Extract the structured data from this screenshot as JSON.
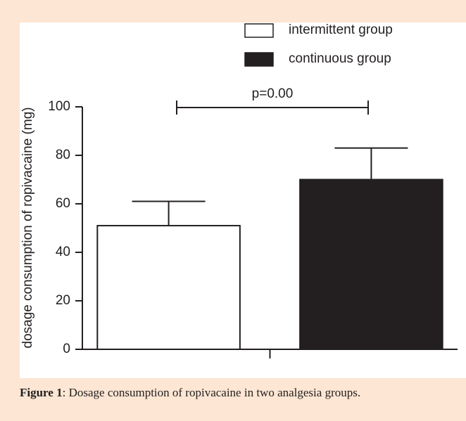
{
  "chart_data": {
    "type": "bar",
    "categories": [
      null
    ],
    "series": [
      {
        "name": "intermittent group",
        "color": "#ffffff",
        "values": [
          51
        ],
        "errors": [
          10
        ]
      },
      {
        "name": "continuous group",
        "color": "#231f20",
        "values": [
          70
        ],
        "errors": [
          13
        ]
      }
    ],
    "ylabel": "dosage consumption of ropivacaine (mg)",
    "ylim": [
      0,
      100
    ],
    "yticks": [
      0,
      20,
      40,
      60,
      80,
      100
    ],
    "annotation": "p=0.00",
    "caption_label": "Figure 1",
    "caption_text": ": Dosage consumption of ropivacaine in two analgesia groups."
  }
}
